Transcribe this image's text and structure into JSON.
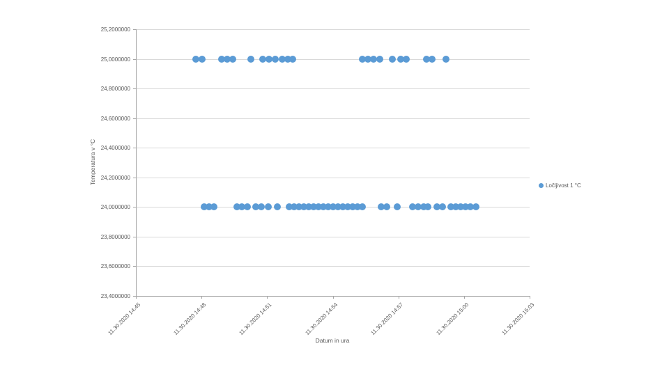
{
  "chart_data": {
    "type": "scatter",
    "title": "",
    "xlabel": "Datum in ura",
    "ylabel": "Temperatura v °C",
    "grid": true,
    "legend_position": "right",
    "colors": {
      "marker": "#5b9bd5",
      "gridline": "#d9d9d9",
      "axis_line": "#a6a6a6",
      "text": "#595959"
    },
    "x_axis": {
      "tick_labels": [
        "11.30.2020 14:45",
        "11.30.2020 14:48",
        "11.30.2020 14:51",
        "11.30.2020 14:54",
        "11.30.2020 14:57",
        "11.30.2020 15:00",
        "11.30.2020 15:03"
      ],
      "tick_minutes": [
        0,
        3,
        6,
        9,
        12,
        15,
        18
      ],
      "unit": "minutes after 11.30.2020 14:45",
      "range_minutes": [
        0,
        18
      ]
    },
    "y_axis": {
      "tick_labels": [
        "25,2000000",
        "25,0000000",
        "24,8000000",
        "24,6000000",
        "24,4000000",
        "24,2000000",
        "24,0000000",
        "23,8000000",
        "23,6000000",
        "23,4000000"
      ],
      "tick_values": [
        25.2,
        25.0,
        24.8,
        24.6,
        24.4,
        24.2,
        24.0,
        23.8,
        23.6,
        23.4
      ],
      "range": [
        23.4,
        25.2
      ],
      "tick_step": 0.2
    },
    "series": [
      {
        "name": "Ločljivost 1 °C",
        "color": "#5b9bd5",
        "marker": "circle",
        "points": [
          [
            2.74,
            25
          ],
          [
            3.03,
            25
          ],
          [
            3.92,
            25
          ],
          [
            4.17,
            25
          ],
          [
            4.43,
            25
          ],
          [
            5.26,
            25
          ],
          [
            5.8,
            25
          ],
          [
            6.08,
            25
          ],
          [
            6.37,
            25
          ],
          [
            6.69,
            25
          ],
          [
            6.94,
            25
          ],
          [
            7.17,
            25
          ],
          [
            10.35,
            25
          ],
          [
            10.61,
            25
          ],
          [
            10.86,
            25
          ],
          [
            11.15,
            25
          ],
          [
            11.72,
            25
          ],
          [
            12.1,
            25
          ],
          [
            12.36,
            25
          ],
          [
            13.28,
            25
          ],
          [
            13.54,
            25
          ],
          [
            14.17,
            25
          ],
          [
            3.12,
            24
          ],
          [
            3.34,
            24
          ],
          [
            3.57,
            24
          ],
          [
            4.62,
            24
          ],
          [
            4.84,
            24
          ],
          [
            5.1,
            24
          ],
          [
            5.48,
            24
          ],
          [
            5.73,
            24
          ],
          [
            6.05,
            24
          ],
          [
            6.47,
            24
          ],
          [
            7.01,
            24
          ],
          [
            7.23,
            24
          ],
          [
            7.45,
            24
          ],
          [
            7.68,
            24
          ],
          [
            7.9,
            24
          ],
          [
            8.12,
            24
          ],
          [
            8.35,
            24
          ],
          [
            8.57,
            24
          ],
          [
            8.79,
            24
          ],
          [
            9.02,
            24
          ],
          [
            9.24,
            24
          ],
          [
            9.46,
            24
          ],
          [
            9.68,
            24
          ],
          [
            9.91,
            24
          ],
          [
            10.13,
            24
          ],
          [
            10.35,
            24
          ],
          [
            11.21,
            24
          ],
          [
            11.47,
            24
          ],
          [
            11.94,
            24
          ],
          [
            12.64,
            24
          ],
          [
            12.9,
            24
          ],
          [
            13.15,
            24
          ],
          [
            13.34,
            24
          ],
          [
            13.76,
            24
          ],
          [
            14.01,
            24
          ],
          [
            14.4,
            24
          ],
          [
            14.62,
            24
          ],
          [
            14.84,
            24
          ],
          [
            15.07,
            24
          ],
          [
            15.29,
            24
          ],
          [
            15.54,
            24
          ]
        ]
      }
    ]
  }
}
